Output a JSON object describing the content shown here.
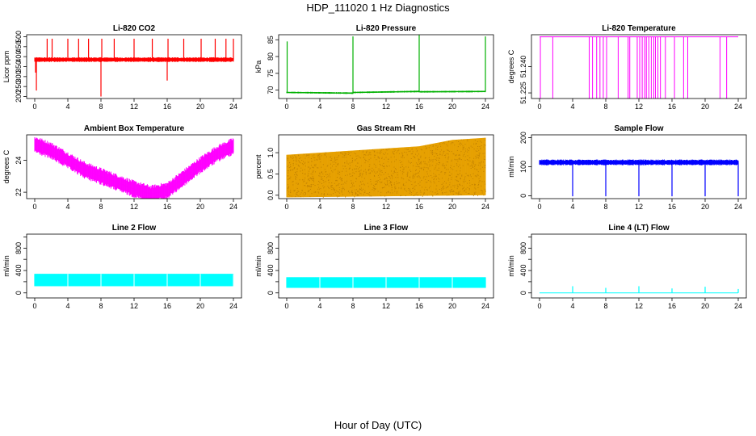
{
  "figure": {
    "title": "HDP_111020  1 Hz Diagnostics",
    "xlabel": "Hour of Day (UTC)"
  },
  "chart_data": [
    {
      "type": "line",
      "title": "Li-820 CO2",
      "ylabel": "Licor ppm",
      "color": "#ff0000",
      "xlim": [
        0,
        24
      ],
      "ylim": [
        190,
        510
      ],
      "xticks": [
        0,
        4,
        8,
        12,
        16,
        20,
        24
      ],
      "yticks": [
        200,
        250,
        300,
        350,
        400,
        450,
        500
      ],
      "base": [
        [
          0,
          385
        ],
        [
          24,
          385
        ]
      ],
      "noise": 12,
      "spikes": [
        [
          0.1,
          320
        ],
        [
          0.2,
          230
        ],
        [
          1.5,
          490
        ],
        [
          2.1,
          490
        ],
        [
          4.0,
          490
        ],
        [
          5.3,
          490
        ],
        [
          6.5,
          490
        ],
        [
          8.0,
          200
        ],
        [
          8.1,
          490
        ],
        [
          9.6,
          490
        ],
        [
          12.0,
          490
        ],
        [
          14.2,
          490
        ],
        [
          16.0,
          280
        ],
        [
          16.1,
          490
        ],
        [
          18.0,
          490
        ],
        [
          20.1,
          490
        ],
        [
          21.8,
          490
        ],
        [
          23.1,
          490
        ],
        [
          24.0,
          490
        ]
      ]
    },
    {
      "type": "line",
      "title": "Li-820 Pressure",
      "ylabel": "kPa",
      "color": "#00b000",
      "xlim": [
        0,
        24
      ],
      "ylim": [
        67.5,
        86.5
      ],
      "xticks": [
        0,
        4,
        8,
        12,
        16,
        20,
        24
      ],
      "yticks": [
        70,
        75,
        80,
        85
      ],
      "base": [
        [
          0,
          69.3
        ],
        [
          8,
          69.1
        ],
        [
          8.05,
          69.3
        ],
        [
          16,
          69.6
        ],
        [
          16.05,
          69.5
        ],
        [
          24,
          69.6
        ]
      ],
      "noise": 0.25,
      "spikes": [
        [
          0.05,
          84.5
        ],
        [
          8.0,
          86.0
        ],
        [
          16.0,
          86.5
        ],
        [
          24.0,
          86.0
        ]
      ]
    },
    {
      "type": "line",
      "title": "Li-820 Temperature",
      "ylabel": "degrees C",
      "color": "#ff00ff",
      "xlim": [
        0,
        24
      ],
      "ylim": [
        51.2218,
        51.2582
      ],
      "xticks": [
        0,
        4,
        8,
        12,
        16,
        20,
        24
      ],
      "yticks": [
        51.225,
        51.24
      ],
      "ytick_labels": [
        "51.225",
        "51.240"
      ],
      "base": [
        [
          0,
          51.257
        ],
        [
          24,
          51.257
        ]
      ],
      "noise": 0,
      "drops": [
        0.1,
        1.6,
        6.0,
        6.4,
        6.9,
        7.3,
        7.7,
        8.1,
        9.5,
        10.7,
        10.9,
        11.8,
        12.1,
        12.4,
        12.7,
        12.9,
        13.2,
        13.5,
        13.8,
        14.0,
        14.3,
        14.6,
        15.2,
        16.3,
        17.4,
        17.9,
        21.8,
        22.6
      ],
      "drop_value": 51.2218
    },
    {
      "type": "line",
      "title": "Ambient Box Temperature",
      "ylabel": "degrees C",
      "color": "#ff00ff",
      "xlim": [
        0,
        24
      ],
      "ylim": [
        21.6,
        25.6
      ],
      "xticks": [
        0,
        4,
        8,
        12,
        16,
        20,
        24
      ],
      "yticks": [
        22,
        24
      ],
      "base": [
        [
          0,
          25.0
        ],
        [
          2,
          24.6
        ],
        [
          4,
          24.0
        ],
        [
          6,
          23.4
        ],
        [
          8,
          23.0
        ],
        [
          10,
          22.6
        ],
        [
          12,
          22.2
        ],
        [
          14,
          21.9
        ],
        [
          16,
          22.1
        ],
        [
          18,
          22.9
        ],
        [
          20,
          23.7
        ],
        [
          22,
          24.4
        ],
        [
          24,
          24.9
        ]
      ],
      "noise": 0.55
    },
    {
      "type": "scatter",
      "title": "Gas Stream RH",
      "ylabel": "percent",
      "color": "#e6a000",
      "point_color": "#c08000",
      "xlim": [
        0,
        24
      ],
      "ylim": [
        -0.08,
        1.42
      ],
      "xticks": [
        0,
        4,
        8,
        12,
        16,
        20,
        24
      ],
      "yticks": [
        0.0,
        0.5,
        1.0
      ],
      "ytick_labels": [
        "0.0",
        "0.5",
        "1.0"
      ],
      "base": [
        [
          0,
          0.45
        ],
        [
          24,
          0.5
        ]
      ],
      "band_lower": [
        [
          0,
          -0.05
        ],
        [
          24,
          0.0
        ]
      ],
      "band_upper": [
        [
          0,
          0.95
        ],
        [
          8,
          1.05
        ],
        [
          12,
          1.1
        ],
        [
          16,
          1.15
        ],
        [
          20,
          1.3
        ],
        [
          24,
          1.35
        ]
      ]
    },
    {
      "type": "line",
      "title": "Sample Flow",
      "ylabel": "ml/min",
      "color": "#0000ff",
      "xlim": [
        0,
        24
      ],
      "ylim": [
        -10,
        210
      ],
      "xticks": [
        0,
        4,
        8,
        12,
        16,
        20,
        24
      ],
      "yticks": [
        0,
        100,
        200
      ],
      "base": [
        [
          0,
          115
        ],
        [
          24,
          115
        ]
      ],
      "noise": 10,
      "spikes": [
        [
          4.0,
          -2
        ],
        [
          8.0,
          -2
        ],
        [
          12.0,
          -2
        ],
        [
          16.0,
          -2
        ],
        [
          20.0,
          -2
        ],
        [
          24.0,
          -2
        ]
      ]
    },
    {
      "type": "area",
      "title": "Line 2 Flow",
      "ylabel": "ml/min",
      "color": "#00ffff",
      "xlim": [
        0,
        24
      ],
      "ylim": [
        -90,
        1050
      ],
      "xticks": [
        0,
        4,
        8,
        12,
        16,
        20,
        24
      ],
      "yticks": [
        0,
        200,
        400,
        600,
        800,
        1000
      ],
      "yticks_labeled": [
        0,
        400,
        800
      ],
      "band_lower": [
        [
          0,
          120
        ],
        [
          24,
          120
        ]
      ],
      "band_upper": [
        [
          0,
          340
        ],
        [
          24,
          340
        ]
      ],
      "gaps": [
        4.0,
        8.0,
        12.0,
        16.0,
        20.0,
        24.0
      ]
    },
    {
      "type": "area",
      "title": "Line 3 Flow",
      "ylabel": "ml/min",
      "color": "#00ffff",
      "xlim": [
        0,
        24
      ],
      "ylim": [
        -90,
        1050
      ],
      "xticks": [
        0,
        4,
        8,
        12,
        16,
        20,
        24
      ],
      "yticks": [
        0,
        200,
        400,
        600,
        800,
        1000
      ],
      "yticks_labeled": [
        0,
        400,
        800
      ],
      "band_lower": [
        [
          0,
          90
        ],
        [
          24,
          90
        ]
      ],
      "band_upper": [
        [
          0,
          280
        ],
        [
          24,
          280
        ]
      ],
      "gaps": [
        4.0,
        8.0,
        12.0,
        16.0,
        20.0
      ]
    },
    {
      "type": "line",
      "title": "Line 4 (LT) Flow",
      "ylabel": "ml/min",
      "color": "#00ffff",
      "xlim": [
        0,
        24
      ],
      "ylim": [
        -90,
        1050
      ],
      "xticks": [
        0,
        4,
        8,
        12,
        16,
        20,
        24
      ],
      "yticks": [
        0,
        200,
        400,
        600,
        800,
        1000
      ],
      "yticks_labeled": [
        0,
        400,
        800
      ],
      "base": [
        [
          0,
          0
        ],
        [
          24,
          0
        ]
      ],
      "noise": 0,
      "spikes": [
        [
          4.0,
          120
        ],
        [
          8.0,
          90
        ],
        [
          12.0,
          120
        ],
        [
          16.0,
          80
        ],
        [
          20.0,
          110
        ],
        [
          24.0,
          70
        ]
      ]
    }
  ]
}
